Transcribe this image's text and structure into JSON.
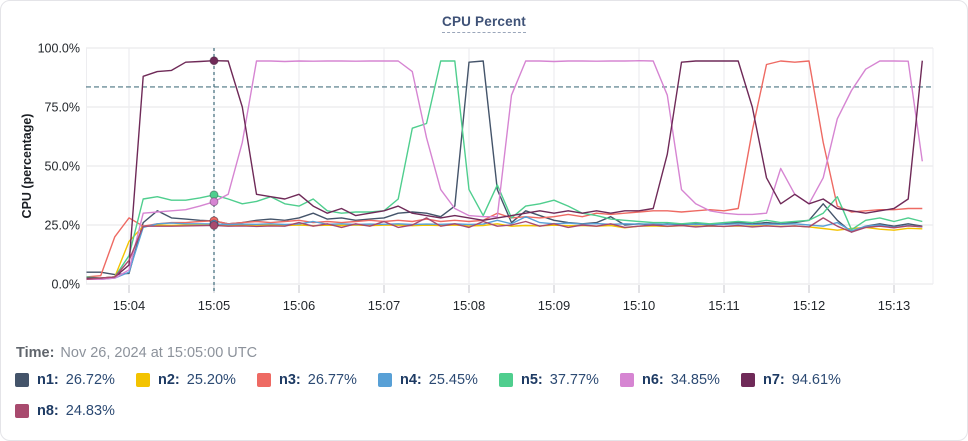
{
  "panel": {
    "title": "CPU Percent"
  },
  "time_row": {
    "label": "Time:",
    "value": "Nov 26, 2024 at 15:05:00 UTC"
  },
  "chart_data": {
    "type": "line",
    "title": "CPU Percent",
    "xlabel": "",
    "ylabel": "CPU (percentage)",
    "y_ticks": [
      "0.0%",
      "25.0%",
      "50.0%",
      "75.0%",
      "100.0%"
    ],
    "y_tick_values": [
      0,
      25,
      50,
      75,
      100
    ],
    "x_ticks": [
      "15:04",
      "15:05",
      "15:06",
      "15:07",
      "15:08",
      "15:09",
      "15:10",
      "15:11",
      "15:12",
      "15:13"
    ],
    "x_tick_minutes": [
      4,
      5,
      6,
      7,
      8,
      9,
      10,
      11,
      12,
      13
    ],
    "ylim": [
      0,
      100
    ],
    "x_start_minute": 3.5,
    "x_step_seconds": 10,
    "grid": true,
    "threshold_percent": 83.5,
    "threshold_color": "#4b7482",
    "crosshair": {
      "time": "15:05",
      "index": 9,
      "color": "#3e6b7a"
    },
    "legend_position": "bottom",
    "series": [
      {
        "name": "n1",
        "color": "#44546a",
        "legend_value": "26.72%",
        "values": [
          5,
          5,
          4,
          4.5,
          26,
          31,
          28,
          27.5,
          27,
          26.72,
          25.5,
          26,
          27,
          27.5,
          27,
          28,
          30,
          27.5,
          28,
          27,
          27.5,
          28,
          30,
          30.5,
          30,
          28.5,
          33,
          94,
          94.5,
          40,
          26,
          31,
          29,
          27,
          26,
          25.5,
          26,
          28.5,
          25,
          25.5,
          25,
          25.5,
          25,
          25.5,
          25,
          25.5,
          26,
          25.5,
          26,
          25.5,
          26,
          27,
          34,
          27,
          22,
          24.5,
          25.5,
          24.5,
          25.5,
          24.5
        ]
      },
      {
        "name": "n2",
        "color": "#f3c300",
        "legend_value": "25.20%",
        "values": [
          2.5,
          2.5,
          3,
          18,
          24.5,
          25,
          24.8,
          25,
          25.1,
          25.2,
          24.8,
          25,
          24.9,
          25,
          24.8,
          25,
          24.7,
          24.9,
          24.8,
          25,
          24.8,
          24.9,
          25,
          24.7,
          24.9,
          24.8,
          25,
          24.6,
          24.8,
          25.5,
          24.5,
          24.8,
          24.6,
          24.9,
          24.7,
          24.8,
          24.5,
          24.8,
          23.8,
          24.5,
          24.6,
          24.4,
          24.7,
          24.5,
          24.6,
          24.4,
          24.6,
          24.5,
          24.7,
          24.4,
          24.6,
          24.2,
          23.5,
          22.8,
          23.5,
          24,
          23.2,
          22.8,
          23.6,
          23.4
        ]
      },
      {
        "name": "n3",
        "color": "#ee6a63",
        "legend_value": "26.77%",
        "values": [
          3,
          3.5,
          20,
          28,
          24.5,
          25.5,
          26,
          26,
          26.5,
          26.77,
          25.5,
          26,
          26.5,
          26,
          26.5,
          27,
          26,
          26.5,
          26,
          26.5,
          27,
          26.5,
          27,
          26.5,
          27.5,
          26.5,
          27,
          26.5,
          27,
          30,
          28,
          28.5,
          28,
          28.5,
          29.5,
          28.5,
          30,
          29.5,
          30,
          30.5,
          31,
          31,
          30.5,
          31,
          31.5,
          31,
          32,
          65,
          93,
          94.5,
          94,
          94.5,
          60,
          33,
          30.5,
          31,
          31.5,
          31.5,
          32,
          32
        ]
      },
      {
        "name": "n4",
        "color": "#58a0d6",
        "legend_value": "25.45%",
        "values": [
          2,
          2,
          2.5,
          5,
          24,
          25.5,
          25.8,
          25.5,
          25.5,
          25.45,
          25.2,
          25.4,
          25.3,
          25.5,
          25.2,
          25.4,
          26.5,
          25.3,
          25.5,
          25.2,
          25.4,
          25.3,
          25.5,
          25.2,
          25.4,
          25.3,
          25.5,
          25.2,
          25.4,
          27,
          25.5,
          28.5,
          26,
          25.5,
          25.8,
          25.4,
          25.6,
          25.3,
          25.5,
          25.4,
          25.5,
          25.3,
          25.5,
          25.2,
          25.4,
          25.3,
          25.5,
          25.2,
          25.4,
          25.3,
          25.5,
          25,
          24.5,
          26,
          22.5,
          24.5,
          25,
          24,
          24.8,
          24.2
        ]
      },
      {
        "name": "n5",
        "color": "#4fce8e",
        "legend_value": "37.77%",
        "values": [
          3,
          2.5,
          3,
          12,
          36,
          37,
          35.5,
          35.5,
          36.5,
          37.77,
          36,
          34,
          35,
          37,
          34,
          33,
          36,
          31,
          30,
          30.5,
          30.5,
          31,
          36,
          66,
          68,
          94.5,
          94.5,
          40,
          29,
          42,
          28,
          33,
          34,
          35.5,
          33,
          30,
          29,
          27.5,
          27,
          26.5,
          26,
          26,
          25.5,
          26,
          25.5,
          26,
          26.5,
          26,
          27,
          26,
          26.5,
          27,
          30,
          37,
          23,
          27,
          28,
          26.5,
          28,
          26.5
        ]
      },
      {
        "name": "n6",
        "color": "#d685d2",
        "legend_value": "34.85%",
        "values": [
          2,
          2,
          2.5,
          6,
          30,
          30.5,
          31,
          31.5,
          33,
          34.85,
          38,
          60,
          94.5,
          94.5,
          94.3,
          94.5,
          94.4,
          94.5,
          94.5,
          94.4,
          94.5,
          94.5,
          94.5,
          90,
          62,
          40,
          32,
          29,
          28.5,
          28.5,
          80,
          94.5,
          94.5,
          94.3,
          94.5,
          94.5,
          94.4,
          94.5,
          94.5,
          94.6,
          94.5,
          80,
          40,
          34,
          31,
          30,
          29.5,
          29.5,
          30,
          49,
          38,
          34,
          45,
          70,
          82,
          91,
          94.5,
          94.5,
          94.4,
          52
        ]
      },
      {
        "name": "n7",
        "color": "#6f2a58",
        "legend_value": "94.61%",
        "values": [
          2.5,
          2.5,
          3,
          8,
          88,
          90,
          90.5,
          94,
          94.3,
          94.61,
          94.5,
          75,
          38,
          37,
          36,
          38,
          33,
          30,
          32,
          29,
          30,
          31,
          33,
          30,
          29,
          28,
          29,
          28,
          27,
          28,
          29,
          30,
          31,
          30,
          31,
          30,
          31,
          30,
          31,
          31,
          32,
          55,
          94,
          94.5,
          94.5,
          94.5,
          94.5,
          75,
          45,
          34,
          38,
          34,
          36,
          32,
          31,
          30,
          31,
          32,
          36,
          94.6
        ]
      },
      {
        "name": "n8",
        "color": "#a84a6e",
        "legend_value": "24.83%",
        "values": [
          2,
          2.5,
          3,
          10,
          24.5,
          24.5,
          24.5,
          24.6,
          24.7,
          24.83,
          24.5,
          24.6,
          24.4,
          24.6,
          24.5,
          26,
          24.5,
          25.5,
          24,
          25.5,
          24.5,
          26.5,
          24,
          25,
          28,
          24.5,
          25.5,
          24,
          26.5,
          24.5,
          25,
          26.5,
          24.5,
          25.5,
          24,
          25,
          24.5,
          25.5,
          24,
          24.5,
          25,
          24.5,
          24.8,
          24.2,
          24.6,
          24.4,
          24.8,
          24.2,
          24.6,
          24.3,
          24.6,
          24.2,
          28,
          24.5,
          22,
          24,
          24.5,
          23.8,
          24.6,
          24.3
        ]
      }
    ]
  }
}
